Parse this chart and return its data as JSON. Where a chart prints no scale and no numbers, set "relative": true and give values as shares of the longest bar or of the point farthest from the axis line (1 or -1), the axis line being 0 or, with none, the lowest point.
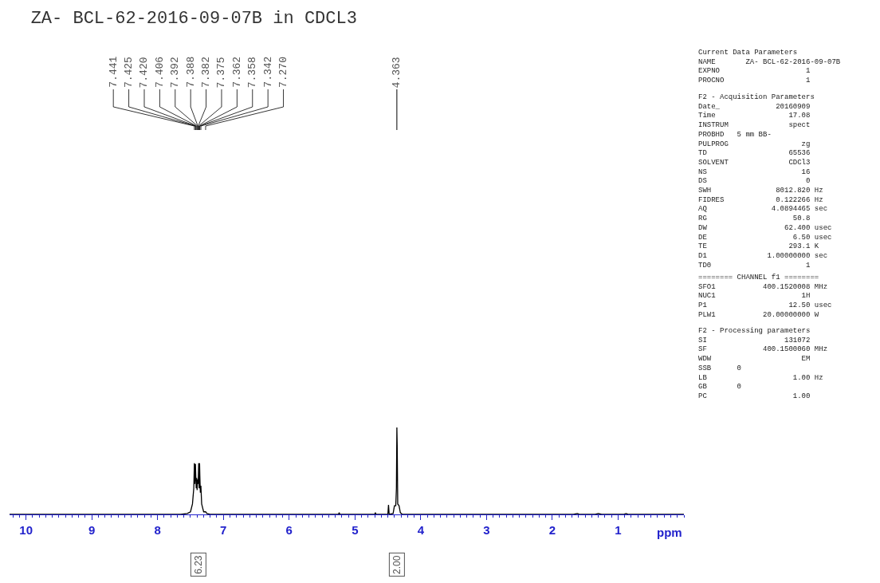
{
  "chart_data": {
    "type": "line",
    "title": "ZA- BCL-62-2016-09-07B in CDCL3",
    "xlabel": "ppm",
    "relative": true,
    "marker": "none",
    "line_style": "solid",
    "xlim": [
      10.25,
      0
    ],
    "xticks": [
      10,
      9,
      8,
      7,
      6,
      5,
      4,
      3,
      2,
      1
    ],
    "series": [
      {
        "color": "#000000",
        "x": [
          10.25,
          8.2,
          7.65,
          7.55,
          7.5,
          7.47,
          7.45,
          7.441,
          7.435,
          7.425,
          7.42,
          7.413,
          7.406,
          7.399,
          7.392,
          7.388,
          7.382,
          7.375,
          7.368,
          7.362,
          7.358,
          7.35,
          7.342,
          7.33,
          7.3,
          7.27,
          7.25,
          7.2,
          5.25,
          5.24,
          5.23,
          4.7,
          4.69,
          4.68,
          4.5,
          4.49,
          4.48,
          4.42,
          4.4,
          4.38,
          4.37,
          4.363,
          4.358,
          4.35,
          4.33,
          4.31,
          4.28,
          1.68,
          1.62,
          1.58,
          1.35,
          1.3,
          1.25,
          0.92,
          0.88,
          0.84,
          0
        ],
        "values": [
          0,
          0,
          0,
          0.01,
          0.03,
          0.12,
          0.3,
          0.59,
          0.35,
          0.58,
          0.45,
          0.3,
          0.42,
          0.28,
          0.4,
          0.35,
          0.38,
          0.59,
          0.3,
          0.59,
          0.45,
          0.25,
          0.33,
          0.12,
          0.03,
          0.03,
          0.01,
          0,
          0,
          0.02,
          0,
          0,
          0.02,
          0,
          0,
          0.11,
          0,
          0.01,
          0.1,
          0.1,
          0.3,
          1.0,
          0.8,
          0.12,
          0.1,
          0.02,
          0,
          0,
          0.01,
          0,
          0,
          0.01,
          0,
          0,
          0.01,
          0,
          0
        ]
      }
    ],
    "annotations": [
      {
        "text": "7.441",
        "x": 7.441
      },
      {
        "text": "7.425",
        "x": 7.425
      },
      {
        "text": "7.420",
        "x": 7.42
      },
      {
        "text": "7.406",
        "x": 7.406
      },
      {
        "text": "7.392",
        "x": 7.392
      },
      {
        "text": "7.388",
        "x": 7.388
      },
      {
        "text": "7.382",
        "x": 7.382
      },
      {
        "text": "7.375",
        "x": 7.375
      },
      {
        "text": "7.362",
        "x": 7.362
      },
      {
        "text": "7.358",
        "x": 7.358
      },
      {
        "text": "7.342",
        "x": 7.342
      },
      {
        "text": "7.270",
        "x": 7.27
      },
      {
        "text": "4.363",
        "x": 4.363
      },
      "6.23",
      "2.00",
      "Current Data Parameters\nNAME       ZA- BCL-62-2016-09-07B\nEXPNO                    1\nPROCNO                   1",
      "F2 - Acquisition Parameters\nDate_             20160909\nTime                 17.08\nINSTRUM              spect\nPROBHD   5 mm BB-\nPULPROG                 zg\nTD                   65536\nSOLVENT              CDCl3\nNS                      16\nDS                       0\nSWH               8012.820 Hz\nFIDRES            0.122266 Hz\nAQ               4.0894465 sec\nRG                    50.8\nDW                  62.400 usec\nDE                    6.50 usec\nTE                   293.1 K\nD1              1.00000000 sec\nTD0                      1",
      "======== CHANNEL f1 ========\nSFO1           400.1520008 MHz\nNUC1                    1H\nP1                   12.50 usec\nPLW1           20.00000000 W",
      "F2 - Processing parameters\nSI                  131072\nSF             400.1500060 MHz\nWDW                     EM\nSSB      0\nLB                    1.00 Hz\nGB       0\nPC                    1.00"
    ]
  }
}
